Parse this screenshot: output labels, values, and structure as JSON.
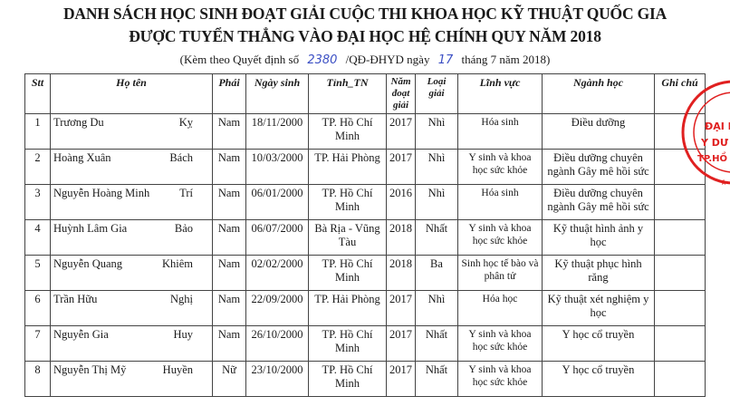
{
  "title_line1": "DANH SÁCH HỌC SINH ĐOẠT GIẢI CUỘC THI KHOA HỌC KỸ THUẬT QUỐC GIA",
  "title_line2": "ĐƯỢC TUYỂN THẲNG VÀO ĐẠI HỌC HỆ CHÍNH QUY NĂM 2018",
  "subtitle": {
    "prefix": "(Kèm theo Quyết định số",
    "decision_no": "2380",
    "middle": "/QĐ-ĐHYD ngày",
    "day": "17",
    "suffix": "tháng 7 năm 2018)"
  },
  "headers": [
    "Stt",
    "Họ tên",
    "Phái",
    "Ngày sinh",
    "Tỉnh_TN",
    "Năm đoạt giải",
    "Loại giải",
    "Lĩnh vực",
    "Ngành học",
    "Ghi chú"
  ],
  "rows": [
    {
      "stt": "1",
      "ho": "Trương Du",
      "ten": "Kỵ",
      "phai": "Nam",
      "ngay": "18/11/2000",
      "tinh": "TP. Hồ Chí Minh",
      "nam": "2017",
      "loai": "Nhì",
      "linhvuc": "Hóa sinh",
      "nganh": "Điều dưỡng",
      "ghichu": ""
    },
    {
      "stt": "2",
      "ho": "Hoàng Xuân",
      "ten": "Bách",
      "phai": "Nam",
      "ngay": "10/03/2000",
      "tinh": "TP. Hải Phòng",
      "nam": "2017",
      "loai": "Nhì",
      "linhvuc": "Y sinh và khoa học sức khỏe",
      "nganh": "Điều dưỡng chuyên ngành Gây mê hồi sức",
      "ghichu": ""
    },
    {
      "stt": "3",
      "ho": "Nguyễn Hoàng Minh",
      "ten": "Trí",
      "phai": "Nam",
      "ngay": "06/01/2000",
      "tinh": "TP. Hồ Chí Minh",
      "nam": "2016",
      "loai": "Nhì",
      "linhvuc": "Hóa sinh",
      "nganh": "Điều dưỡng chuyên ngành Gây mê hồi sức",
      "ghichu": ""
    },
    {
      "stt": "4",
      "ho": "Huỳnh Lâm Gia",
      "ten": "Bảo",
      "phai": "Nam",
      "ngay": "06/07/2000",
      "tinh": "Bà Rịa - Vũng Tàu",
      "nam": "2018",
      "loai": "Nhất",
      "linhvuc": "Y sinh và khoa học sức khỏe",
      "nganh": "Kỹ thuật hình ảnh y học",
      "ghichu": ""
    },
    {
      "stt": "5",
      "ho": "Nguyễn Quang",
      "ten": "Khiêm",
      "phai": "Nam",
      "ngay": "02/02/2000",
      "tinh": "TP. Hồ Chí Minh",
      "nam": "2018",
      "loai": "Ba",
      "linhvuc": "Sinh học tế bào và phân tử",
      "nganh": "Kỹ thuật phục hình răng",
      "ghichu": ""
    },
    {
      "stt": "6",
      "ho": "Trần Hữu",
      "ten": "Nghị",
      "phai": "Nam",
      "ngay": "22/09/2000",
      "tinh": "TP. Hải Phòng",
      "nam": "2017",
      "loai": "Nhì",
      "linhvuc": "Hóa học",
      "nganh": "Kỹ thuật xét nghiệm y học",
      "ghichu": ""
    },
    {
      "stt": "7",
      "ho": "Nguyễn Gia",
      "ten": "Huy",
      "phai": "Nam",
      "ngay": "26/10/2000",
      "tinh": "TP. Hồ Chí Minh",
      "nam": "2017",
      "loai": "Nhất",
      "linhvuc": "Y sinh và khoa học sức khỏe",
      "nganh": "Y học cổ truyền",
      "ghichu": ""
    },
    {
      "stt": "8",
      "ho": "Nguyễn Thị Mỹ",
      "ten": "Huyền",
      "phai": "Nữ",
      "ngay": "23/10/2000",
      "tinh": "TP. Hồ Chí Minh",
      "nam": "2017",
      "loai": "Nhất",
      "linhvuc": "Y sinh và khoa học sức khỏe",
      "nganh": "Y học cổ truyền",
      "ghichu": ""
    }
  ],
  "stamp": {
    "text": "ĐẠI HỌC Y DƯỢC TP. HỒ CHÍ MINH",
    "color": "#e02020"
  }
}
